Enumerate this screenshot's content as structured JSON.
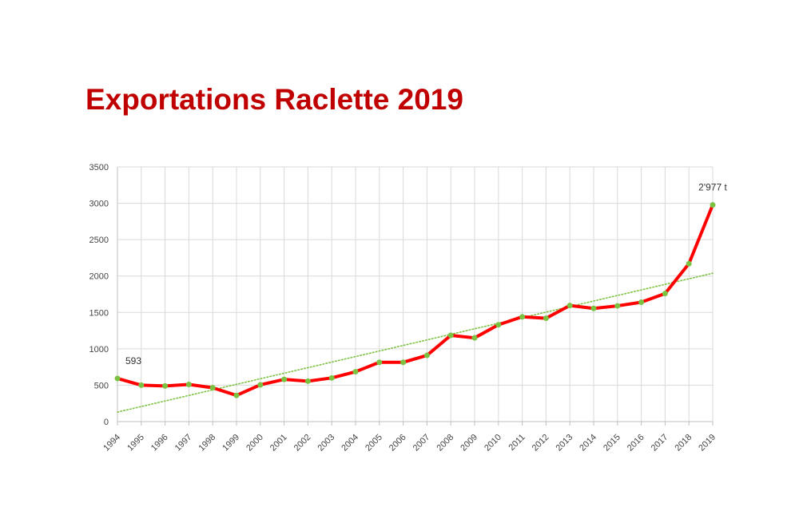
{
  "page": {
    "title": "Exportations Raclette 2019"
  },
  "chart_data": {
    "type": "line",
    "title": "Exportations Raclette 2019",
    "xlabel": "",
    "ylabel": "",
    "x": [
      "1994",
      "1995",
      "1996",
      "1997",
      "1998",
      "1999",
      "2000",
      "2001",
      "2002",
      "2003",
      "2004",
      "2005",
      "2006",
      "2007",
      "2008",
      "2009",
      "2010",
      "2011",
      "2012",
      "2013",
      "2014",
      "2015",
      "2016",
      "2017",
      "2018",
      "2019"
    ],
    "series": [
      {
        "values": [
          593,
          500,
          490,
          510,
          465,
          360,
          505,
          580,
          555,
          600,
          685,
          815,
          815,
          910,
          1185,
          1150,
          1330,
          1440,
          1420,
          1595,
          1555,
          1590,
          1640,
          1760,
          2170,
          2977
        ],
        "color": "#ff0000",
        "marker_color": "#7cc242"
      }
    ],
    "trendline": {
      "type": "linear",
      "color": "#7cc242",
      "style": "dotted"
    },
    "ylim": [
      0,
      3500
    ],
    "yticks": [
      0,
      500,
      1000,
      1500,
      2000,
      2500,
      3000,
      3500
    ],
    "grid": true,
    "data_labels": [
      {
        "category": "1994",
        "text": "593"
      },
      {
        "category": "2019",
        "text": "2'977 t"
      }
    ],
    "legend": "none"
  }
}
